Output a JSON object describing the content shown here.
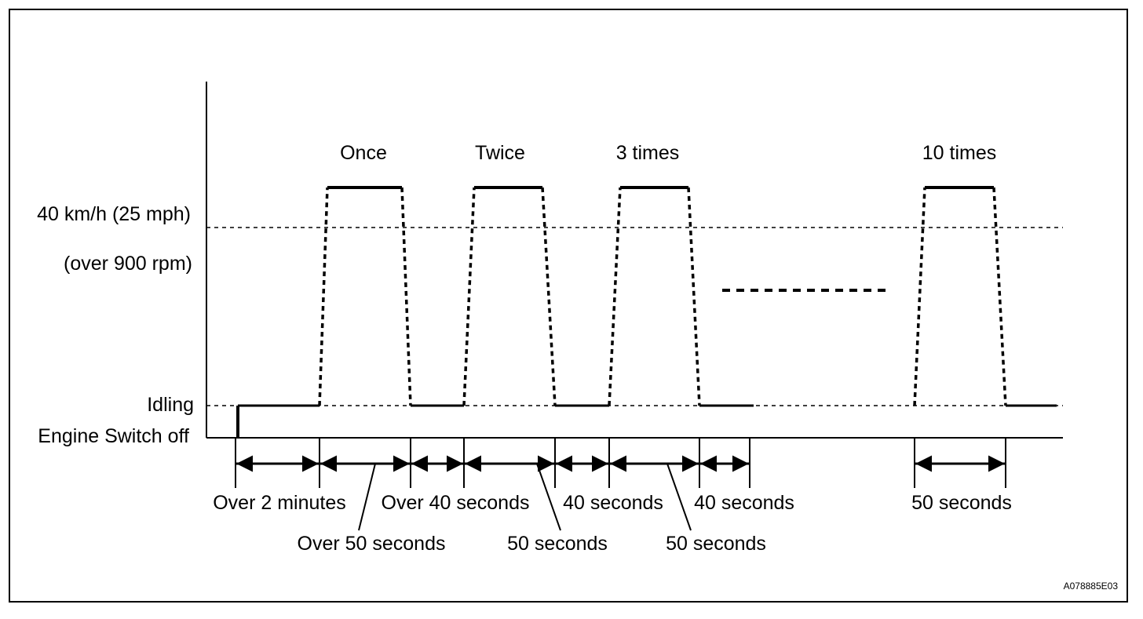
{
  "diagram": {
    "cycle_labels": {
      "c1": "Once",
      "c2": "Twice",
      "c3": "3 times",
      "c10": "10 times"
    },
    "y_labels": {
      "speed": "40 km/h (25 mph)",
      "rpm": "(over 900 rpm)",
      "idling": "Idling",
      "engine_off": "Engine Switch off"
    },
    "interval_labels": {
      "i1": "Over 2 minutes",
      "i2": "Over 50 seconds",
      "i3": "Over 40 seconds",
      "i4": "50 seconds",
      "i5": "40 seconds",
      "i6": "50 seconds",
      "i7": "40 seconds",
      "i8": "50 seconds"
    },
    "figure_code": "A078885E03",
    "line_color": "#000000",
    "background": "#ffffff"
  }
}
